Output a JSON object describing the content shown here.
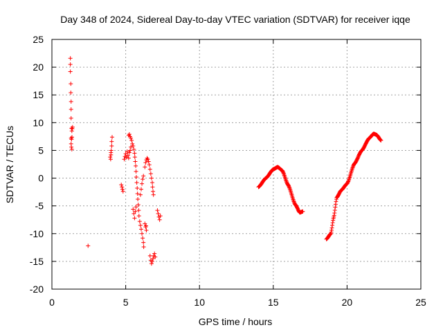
{
  "chart_data": {
    "type": "scatter",
    "title": "Day 348 of 2024, Sidereal Day-to-day VTEC variation (SDTVAR) for receiver iqqe",
    "xlabel": "GPS time / hours",
    "ylabel": "SDTVAR / TECUs",
    "xlim": [
      0,
      25
    ],
    "ylim": [
      -20,
      25
    ],
    "x_ticks": [
      "0",
      "5",
      "10",
      "15",
      "20",
      "25"
    ],
    "y_ticks": [
      "-20",
      "-15",
      "-10",
      "-5",
      "0",
      "5",
      "10",
      "15",
      "20",
      "25"
    ],
    "grid": true,
    "marker": "plus",
    "color": "#ff0000",
    "series": [
      {
        "name": "SDTVAR",
        "points": [
          [
            1.25,
            21.6
          ],
          [
            1.25,
            20.5
          ],
          [
            1.25,
            19.2
          ],
          [
            1.28,
            17.0
          ],
          [
            1.28,
            15.4
          ],
          [
            1.3,
            13.8
          ],
          [
            1.3,
            12.4
          ],
          [
            1.3,
            10.8
          ],
          [
            1.33,
            9.0
          ],
          [
            1.35,
            8.5
          ],
          [
            1.38,
            8.9
          ],
          [
            1.4,
            9.2
          ],
          [
            1.3,
            7.2
          ],
          [
            1.33,
            7.0
          ],
          [
            1.36,
            7.4
          ],
          [
            1.3,
            6.2
          ],
          [
            1.32,
            5.6
          ],
          [
            1.35,
            5.2
          ],
          [
            2.45,
            -12.2
          ],
          [
            3.95,
            3.8
          ],
          [
            3.98,
            3.4
          ],
          [
            4.0,
            4.2
          ],
          [
            4.0,
            4.6
          ],
          [
            4.02,
            5.0
          ],
          [
            4.05,
            5.8
          ],
          [
            4.05,
            6.6
          ],
          [
            4.08,
            7.4
          ],
          [
            4.7,
            -1.2
          ],
          [
            4.75,
            -1.6
          ],
          [
            4.78,
            -2.0
          ],
          [
            4.82,
            -2.4
          ],
          [
            4.9,
            3.4
          ],
          [
            4.95,
            3.9
          ],
          [
            5.0,
            4.4
          ],
          [
            5.05,
            3.8
          ],
          [
            5.1,
            4.8
          ],
          [
            5.15,
            4.1
          ],
          [
            5.2,
            3.6
          ],
          [
            5.25,
            4.6
          ],
          [
            5.3,
            5.0
          ],
          [
            5.35,
            5.6
          ],
          [
            5.2,
            7.7
          ],
          [
            5.25,
            7.9
          ],
          [
            5.3,
            7.5
          ],
          [
            5.35,
            7.2
          ],
          [
            5.4,
            6.8
          ],
          [
            5.45,
            6.2
          ],
          [
            5.5,
            5.8
          ],
          [
            5.55,
            5.2
          ],
          [
            5.6,
            4.5
          ],
          [
            5.62,
            3.8
          ],
          [
            5.65,
            3.0
          ],
          [
            5.68,
            2.2
          ],
          [
            5.7,
            1.2
          ],
          [
            5.72,
            0.2
          ],
          [
            5.75,
            -0.8
          ],
          [
            5.78,
            -1.8
          ],
          [
            5.8,
            -2.8
          ],
          [
            5.82,
            -3.8
          ],
          [
            5.85,
            -4.8
          ],
          [
            5.88,
            -5.8
          ],
          [
            5.5,
            -5.6
          ],
          [
            5.55,
            -6.4
          ],
          [
            5.6,
            -7.2
          ],
          [
            5.65,
            -6.0
          ],
          [
            5.7,
            -5.2
          ],
          [
            5.9,
            -6.8
          ],
          [
            5.95,
            -7.8
          ],
          [
            6.0,
            -8.5
          ],
          [
            6.05,
            -9.2
          ],
          [
            6.1,
            -10.0
          ],
          [
            6.15,
            -10.8
          ],
          [
            6.2,
            -11.6
          ],
          [
            6.22,
            -12.4
          ],
          [
            6.1,
            -1.0
          ],
          [
            6.15,
            -0.2
          ],
          [
            6.2,
            0.4
          ],
          [
            6.05,
            -2.0
          ],
          [
            6.0,
            -3.0
          ],
          [
            6.3,
            2.0
          ],
          [
            6.35,
            2.8
          ],
          [
            6.4,
            3.3
          ],
          [
            6.45,
            3.6
          ],
          [
            6.5,
            3.4
          ],
          [
            6.55,
            3.0
          ],
          [
            6.6,
            2.4
          ],
          [
            6.65,
            1.6
          ],
          [
            6.7,
            0.8
          ],
          [
            6.75,
            0.0
          ],
          [
            6.8,
            -0.8
          ],
          [
            6.82,
            -1.6
          ],
          [
            6.85,
            -2.4
          ],
          [
            6.88,
            -3.0
          ],
          [
            6.3,
            -8.2
          ],
          [
            6.35,
            -8.8
          ],
          [
            6.4,
            -9.4
          ],
          [
            6.38,
            -8.6
          ],
          [
            6.65,
            -14.0
          ],
          [
            6.7,
            -14.8
          ],
          [
            6.75,
            -15.4
          ],
          [
            6.8,
            -15.0
          ],
          [
            6.85,
            -14.5
          ],
          [
            6.9,
            -14.0
          ],
          [
            6.95,
            -13.6
          ],
          [
            7.0,
            -14.2
          ],
          [
            7.15,
            -5.8
          ],
          [
            7.2,
            -6.4
          ],
          [
            7.25,
            -7.0
          ],
          [
            7.3,
            -7.5
          ],
          [
            7.35,
            -6.8
          ]
        ]
      }
    ],
    "segments": [
      {
        "from": 14.0,
        "to": 17.0,
        "fn": "A"
      },
      {
        "from": 18.6,
        "to": 22.3,
        "fn": "B"
      }
    ],
    "curve_keypoints": {
      "A": [
        [
          14.0,
          -1.6
        ],
        [
          14.5,
          0.0
        ],
        [
          15.0,
          1.6
        ],
        [
          15.3,
          2.0
        ],
        [
          15.6,
          1.4
        ],
        [
          16.0,
          -1.2
        ],
        [
          16.5,
          -4.8
        ],
        [
          16.8,
          -6.2
        ],
        [
          17.0,
          -6.0
        ]
      ],
      "B": [
        [
          18.6,
          -11.0
        ],
        [
          18.9,
          -10.0
        ],
        [
          19.1,
          -7.0
        ],
        [
          19.3,
          -3.5
        ],
        [
          19.6,
          -2.2
        ],
        [
          20.0,
          -1.0
        ],
        [
          20.5,
          2.6
        ],
        [
          21.0,
          5.0
        ],
        [
          21.5,
          7.2
        ],
        [
          21.8,
          8.0
        ],
        [
          22.0,
          7.8
        ],
        [
          22.3,
          6.8
        ]
      ]
    }
  }
}
